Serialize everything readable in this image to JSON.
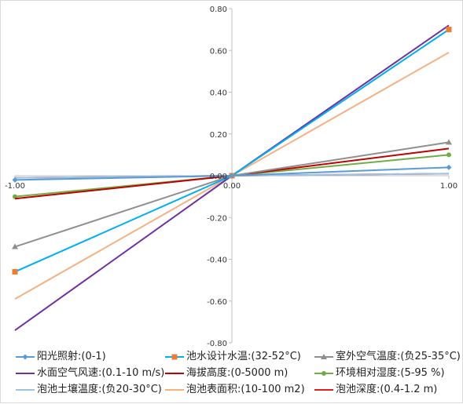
{
  "chart_data": {
    "type": "line",
    "title": "",
    "xlabel": "",
    "ylabel": "",
    "x": [
      -1,
      0,
      1
    ],
    "xlim": [
      -1,
      1
    ],
    "ylim": [
      -0.8,
      0.8
    ],
    "x_tick_labels": [
      "-1.00",
      "0.00",
      "1.00"
    ],
    "y_tick_labels": [
      "0.80",
      "0.60",
      "0.40",
      "0.20",
      "0.00",
      "-0.20",
      "-0.40",
      "-0.60",
      "-0.80"
    ],
    "y_ticks": [
      0.8,
      0.6,
      0.4,
      0.2,
      0.0,
      -0.2,
      -0.4,
      -0.6,
      -0.8
    ],
    "grid": false,
    "legend_position": "bottom",
    "series": [
      {
        "name": "阳光照射:(0-1)",
        "values": [
          -0.02,
          0,
          0.04
        ],
        "color": "#5b9bd5",
        "marker": "diamond"
      },
      {
        "name": "池水设计水温:(32-52°C)",
        "values": [
          -0.46,
          0,
          0.7
        ],
        "color": "#00b0f0",
        "marker_color": "#ed7d31",
        "marker": "square"
      },
      {
        "name": "室外空气温度:(负25-35°C)",
        "values": [
          -0.34,
          0,
          0.16
        ],
        "color": "#8f8f8f",
        "marker": "triangle"
      },
      {
        "name": "水面空气风速:(0.1-10 m/s)",
        "values": [
          -0.74,
          0,
          0.72
        ],
        "color": "#7030a0",
        "marker": "none"
      },
      {
        "name": "海拔高度:(0-5000 m)",
        "values": [
          -0.11,
          0,
          0.13
        ],
        "color": "#c00000",
        "marker": "none"
      },
      {
        "name": "环境相对湿度:(5-95 %)",
        "values": [
          -0.1,
          0,
          0.1
        ],
        "color": "#70ad47",
        "marker": "circle"
      },
      {
        "name": "泡池土壤温度:(负20-30°C)",
        "values": [
          -0.01,
          0,
          0.01
        ],
        "color": "#9dc3e6",
        "marker": "none"
      },
      {
        "name": "泡池表面积:(10-100 m2)",
        "values": [
          -0.59,
          0,
          0.59
        ],
        "color": "#f4b183",
        "marker": "none"
      },
      {
        "name": "泡池深度:(0.4-1.2 m)",
        "values": [
          -0.01,
          0,
          0.01
        ],
        "color": "#e02020",
        "marker": "none"
      }
    ]
  }
}
